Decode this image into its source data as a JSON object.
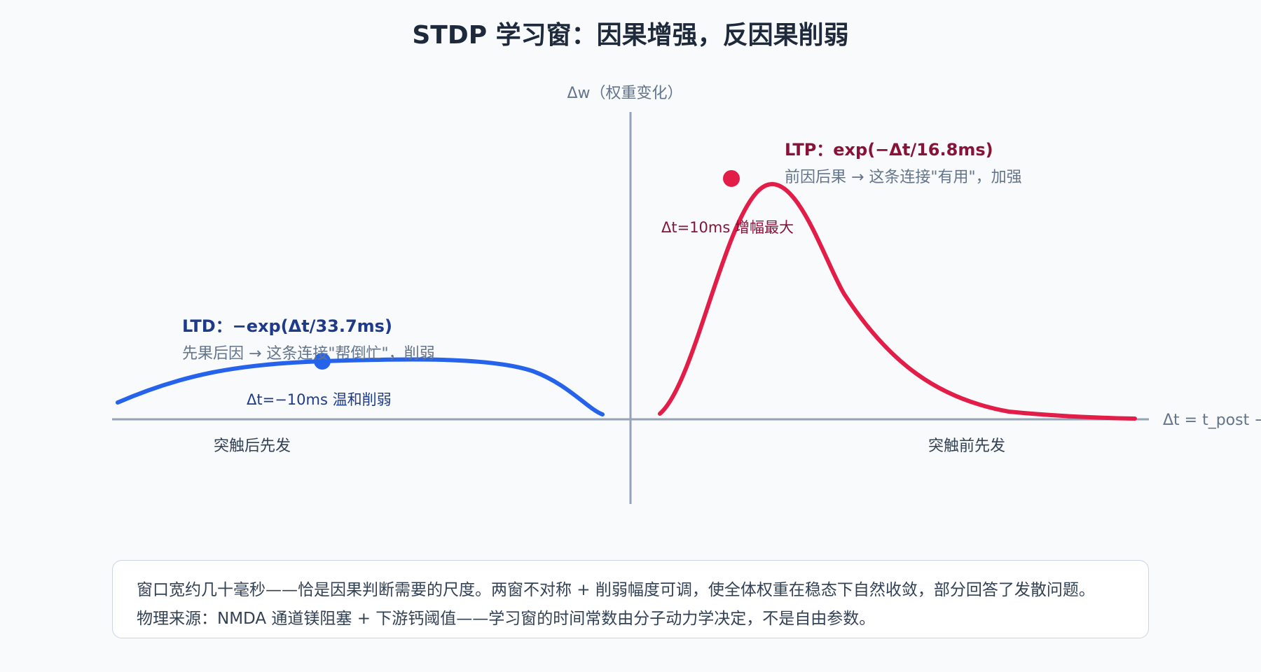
{
  "title": "STDP 学习窗：因果增强，反因果削弱",
  "axes": {
    "y_label": "Δw（权重变化）",
    "x_label": "Δt = t_post − t_pre",
    "left_region_label": "突触后先发",
    "right_region_label": "突触前先发"
  },
  "ltd": {
    "title": "LTD：−exp(Δt/33.7ms)",
    "description": "先果后因 → 这条连接\"帮倒忙\"，削弱",
    "point_label": "Δt=−10ms 温和削弱",
    "color": "#2563eb"
  },
  "ltp": {
    "title": "LTP：exp(−Δt/16.8ms)",
    "description": "前因后果 → 这条连接\"有用\"，加强",
    "point_label": "Δt=10ms 增幅最大",
    "color": "#e11d48"
  },
  "colors": {
    "axis": "#94a3b8",
    "ltd_curve": "#2563eb",
    "ltp_curve": "#e11d48"
  },
  "note": {
    "line1": "窗口宽约几十毫秒——恰是因果判断需要的尺度。两窗不对称 + 削弱幅度可调，使全体权重在稳态下自然收敛，部分回答了发散问题。",
    "line2": "物理来源：NMDA 通道镁阻塞 + 下游钙阈值——学习窗的时间常数由分子动力学决定，不是自由参数。"
  }
}
